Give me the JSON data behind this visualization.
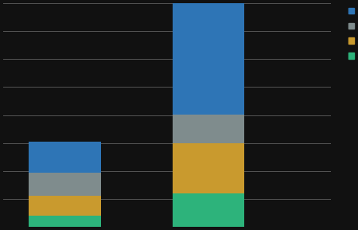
{
  "segments": [
    {
      "label": "blue",
      "color": "#2e75b6",
      "values": [
        28,
        100
      ]
    },
    {
      "label": "gray",
      "color": "#7f8c8d",
      "values": [
        20,
        25
      ]
    },
    {
      "label": "orange",
      "color": "#c99a2e",
      "values": [
        18,
        45
      ]
    },
    {
      "label": "green",
      "color": "#2db37b",
      "values": [
        10,
        30
      ]
    }
  ],
  "stack_order": [
    "green",
    "orange",
    "gray",
    "blue"
  ],
  "background_color": "#111111",
  "grid_color": "#555555",
  "bar_width": 0.35,
  "bar_positions": [
    0.3,
    1.0
  ],
  "ylim": [
    0,
    200
  ],
  "yticks": [
    0,
    25,
    50,
    75,
    100,
    125,
    150,
    175,
    200
  ],
  "legend_colors": [
    "#2e75b6",
    "#7f8c8d",
    "#c99a2e",
    "#2db37b"
  ],
  "legend_labels": [
    "",
    "",
    "",
    ""
  ]
}
